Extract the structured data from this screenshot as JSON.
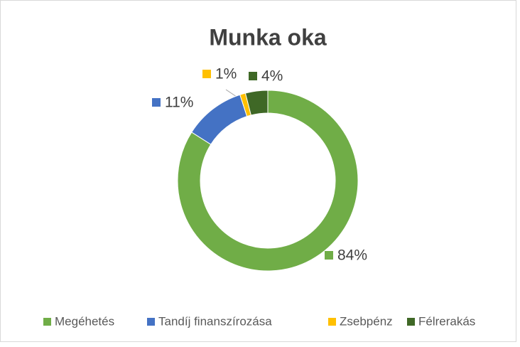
{
  "chart_data": {
    "type": "donut",
    "title": "Munka oka",
    "categories": [
      "Megéhetés",
      "Tandíj finanszírozása",
      "Zsebpénz",
      "Félrerakás"
    ],
    "values": [
      84,
      11,
      1,
      4
    ],
    "value_labels": [
      "84%",
      "11%",
      "1%",
      "4%"
    ],
    "colors": [
      "#70ad47",
      "#4472c4",
      "#ffc000",
      "#3f6826"
    ],
    "legend": "bottom"
  }
}
